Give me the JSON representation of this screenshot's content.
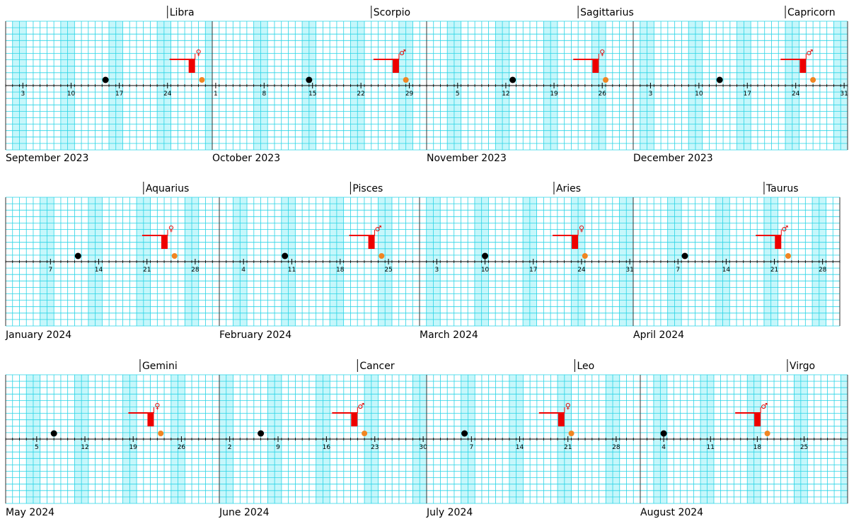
{
  "chart_data": {
    "type": "calendar-timeline",
    "grid": true,
    "colors": {
      "grid_line": "#2ad4e6",
      "weekend_shade": "#c6f7fb",
      "marker_bar": "#ee0000",
      "new_moon": "#000000",
      "sun_point": "#f08522",
      "axis": "#000000"
    },
    "symbols": {
      "venus": "♀",
      "mars": "♂"
    },
    "months": [
      {
        "label": "September 2023",
        "days": 30,
        "sign": "Libra",
        "sign_day": 24,
        "ticks": [
          3,
          10,
          17,
          24
        ],
        "shade_start": 2,
        "new_moon": 15,
        "marker_day": 28,
        "symbol": "venus",
        "dot_day": 29
      },
      {
        "label": "October 2023",
        "days": 31,
        "sign": "Scorpio",
        "sign_day": 23.5,
        "ticks": [
          1,
          8,
          15,
          22,
          29
        ],
        "shade_start": 7,
        "new_moon": 14.5,
        "marker_day": 27.5,
        "symbol": "mars",
        "dot_day": 28.5
      },
      {
        "label": "November 2023",
        "days": 30,
        "sign": "Sagittarius",
        "sign_day": 22.5,
        "ticks": [
          5,
          12,
          19,
          26
        ],
        "shade_start": 4,
        "new_moon": 13,
        "marker_day": 25.5,
        "symbol": "venus",
        "dot_day": 26.5
      },
      {
        "label": "December 2023",
        "days": 31,
        "sign": "Capricorn",
        "sign_day": 22.5,
        "ticks": [
          3,
          10,
          17,
          24,
          31
        ],
        "shade_start": 2,
        "new_moon": 13,
        "marker_day": 25.5,
        "symbol": "mars",
        "dot_day": 26.5
      },
      {
        "label": "January 2024",
        "days": 31,
        "sign": "Aquarius",
        "sign_day": 20.5,
        "ticks": [
          7,
          14,
          21,
          28
        ],
        "shade_start": 6,
        "new_moon": 11,
        "marker_day": 24,
        "symbol": "venus",
        "dot_day": 25
      },
      {
        "label": "February 2024",
        "days": 29,
        "sign": "Pisces",
        "sign_day": 19.5,
        "ticks": [
          4,
          11,
          18,
          25
        ],
        "shade_start": 3,
        "new_moon": 10,
        "marker_day": 23,
        "symbol": "mars",
        "dot_day": 24
      },
      {
        "label": "March 2024",
        "days": 31,
        "sign": "Aries",
        "sign_day": 20,
        "ticks": [
          3,
          10,
          17,
          24,
          31
        ],
        "shade_start": 2,
        "new_moon": 10,
        "marker_day": 23.5,
        "symbol": "venus",
        "dot_day": 24.5
      },
      {
        "label": "April 2024",
        "days": 30,
        "sign": "Taurus",
        "sign_day": 19.5,
        "ticks": [
          7,
          14,
          21,
          28
        ],
        "shade_start": 6,
        "new_moon": 8,
        "marker_day": 22,
        "symbol": "mars",
        "dot_day": 23
      },
      {
        "label": "May 2024",
        "days": 31,
        "sign": "Gemini",
        "sign_day": 20,
        "ticks": [
          5,
          12,
          19,
          26
        ],
        "shade_start": 4,
        "new_moon": 7.5,
        "marker_day": 22,
        "symbol": "venus",
        "dot_day": 23
      },
      {
        "label": "June 2024",
        "days": 30,
        "sign": "Cancer",
        "sign_day": 20.5,
        "ticks": [
          2,
          9,
          16,
          23,
          30
        ],
        "shade_start": 1,
        "new_moon": 6.5,
        "marker_day": 20.5,
        "symbol": "mars",
        "dot_day": 21.5
      },
      {
        "label": "July 2024",
        "days": 31,
        "sign": "Leo",
        "sign_day": 22,
        "ticks": [
          7,
          14,
          21,
          28
        ],
        "shade_start": 6,
        "new_moon": 6,
        "marker_day": 20.5,
        "symbol": "venus",
        "dot_day": 21.5
      },
      {
        "label": "August 2024",
        "days": 31,
        "sign": "Virgo",
        "sign_day": 22.5,
        "ticks": [
          4,
          11,
          18,
          25
        ],
        "shade_start": 3,
        "new_moon": 4,
        "marker_day": 18.5,
        "symbol": "mars",
        "dot_day": 19.5
      }
    ]
  }
}
